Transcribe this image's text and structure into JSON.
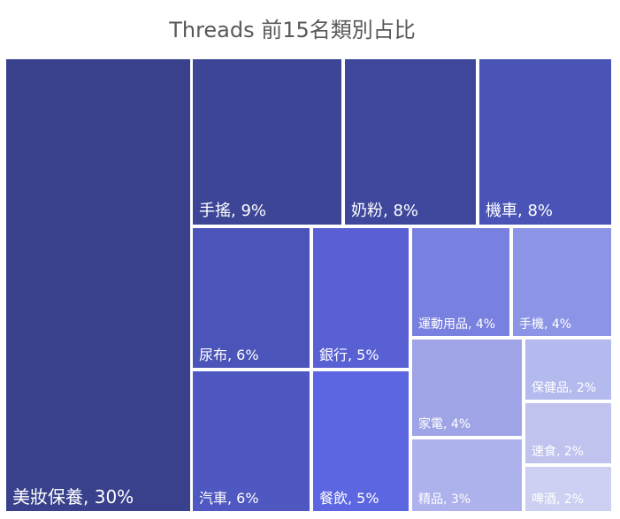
{
  "chart_data": {
    "type": "treemap",
    "title": "Threads 前15名類別占比",
    "items": [
      {
        "label": "美妝保養, 30%",
        "value": 30,
        "color": "#39408c"
      },
      {
        "label": "手搖, 9%",
        "value": 9,
        "color": "#3d4596"
      },
      {
        "label": "奶粉, 8%",
        "value": 8,
        "color": "#3f479c"
      },
      {
        "label": "機車, 8%",
        "value": 8,
        "color": "#4a53b6"
      },
      {
        "label": "尿布, 6%",
        "value": 6,
        "color": "#4b54b8"
      },
      {
        "label": "汽車, 6%",
        "value": 6,
        "color": "#4f58c0"
      },
      {
        "label": "銀行, 5%",
        "value": 5,
        "color": "#5860d4"
      },
      {
        "label": "餐飲, 5%",
        "value": 5,
        "color": "#5c66e0"
      },
      {
        "label": "運動用品, 4%",
        "value": 4,
        "color": "#7880e0"
      },
      {
        "label": "手機, 4%",
        "value": 4,
        "color": "#8c94e6"
      },
      {
        "label": "家電, 4%",
        "value": 4,
        "color": "#9ea4e6"
      },
      {
        "label": "保健品, 2%",
        "value": 2,
        "color": "#b4b9ee"
      },
      {
        "label": "速食, 2%",
        "value": 2,
        "color": "#c0c3ee"
      },
      {
        "label": "精品, 3%",
        "value": 3,
        "color": "#aeb2ec"
      },
      {
        "label": "啤酒, 2%",
        "value": 2,
        "color": "#cdd0f2"
      }
    ]
  }
}
